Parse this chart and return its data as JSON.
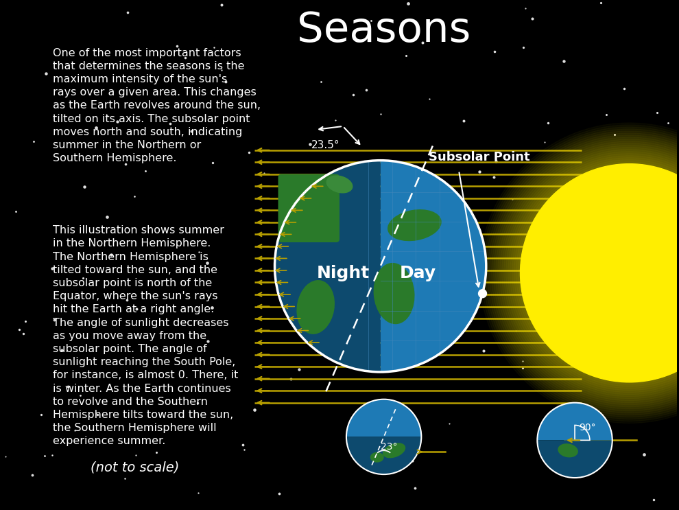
{
  "title": "Seasons",
  "bg_color": "#000000",
  "text_color": "#ffffff",
  "sun_color": "#ffee00",
  "ray_color": "#b8a000",
  "earth_day_color": "#1a7abf",
  "earth_night_color": "#1a5a8a",
  "land_color": "#2d8a2d",
  "ray_arrow_color": "#9a8200",
  "paragraph1": "One of the most important factors\nthat determines the seasons is the\nmaximum intensity of the sun's\nrays over a given area. This changes\nas the Earth revolves around the sun,\ntilted on its axis. The subsolar point\nmoves north and south, indicating\nsummer in the Northern or\nSouthern Hemisphere.",
  "paragraph2": "This illustration shows summer\nin the Northern Hemisphere.\nThe Northern Hemisphere is\ntilted toward the sun, and the\nsubsolar point is north of the\nEquator, where the sun's rays\nhit the Earth at a right angle.\nThe angle of sunlight decreases\nas you move away from the\nsubsolar point. The angle of\nsunlight reaching the South Pole,\nfor instance, is almost 0. There, it\nis winter. As the Earth continues\nto revolve and the Southern\nHemisphere tilts toward the sun,\nthe Southern Hemisphere will\nexperience summer.",
  "paragraph3": "(not to scale)",
  "label_night": "Night",
  "label_day": "Day",
  "label_subsolar": "Subsolar Point",
  "label_angle1": "23.5°",
  "label_angle2": "23°",
  "label_angle3": "90°",
  "num_rays": 22,
  "num_stars": 120
}
